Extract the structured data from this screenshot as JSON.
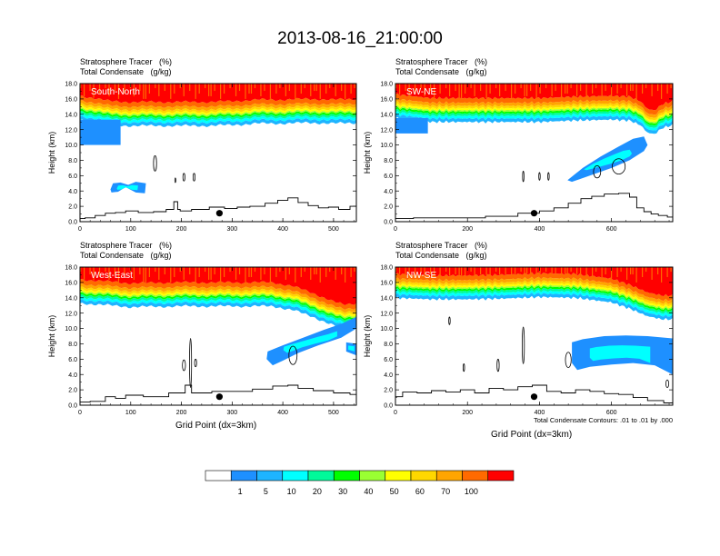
{
  "title": "2013-08-16_21:00:00",
  "colors": {
    "scale": [
      "#ffffff",
      "#1e90ff",
      "#1eb4ff",
      "#00ffff",
      "#00fa9a",
      "#00ff00",
      "#9aff32",
      "#ffff00",
      "#ffd700",
      "#ffa500",
      "#ff6a00",
      "#ff0000"
    ],
    "condensate_fill": "#1e90ff",
    "cloud_stroke": "#000000",
    "terrain_stroke": "#000000"
  },
  "colorbar": {
    "labels": [
      "1",
      "5",
      "10",
      "20",
      "30",
      "40",
      "50",
      "60",
      "70",
      "100"
    ]
  },
  "note": "Total Condensate Contours: .01 to .01 by .000",
  "xaxis_title": "Grid Point (dx=3km)",
  "chart_data": [
    {
      "type": "heatmap",
      "panel": "South-North",
      "field_label": "Stratosphere Tracer   (%)",
      "contour_label": "Total Condensate   (g/kg)",
      "ylabel": "Height (km)",
      "xlim": [
        0,
        545
      ],
      "ylim": [
        0,
        18
      ],
      "xticks": [
        "0",
        "100",
        "200",
        "300",
        "400",
        "500"
      ],
      "xtick_values": [
        0,
        100,
        200,
        300,
        400,
        500
      ],
      "yticks": [
        "0.0",
        "2.0",
        "4.0",
        "6.0",
        "8.0",
        "10.0",
        "12.0",
        "14.0",
        "16.0",
        "18.0"
      ],
      "tracer_profile": {
        "x": [
          0,
          30,
          60,
          100,
          150,
          200,
          250,
          300,
          350,
          400,
          450,
          500,
          545
        ],
        "base_km": [
          13.3,
          13.0,
          12.6,
          12.5,
          12.5,
          12.5,
          12.5,
          12.6,
          12.8,
          12.8,
          12.9,
          12.8,
          12.9
        ]
      },
      "low_tracer": [
        {
          "x0": 0,
          "x1": 80,
          "y0": 10.0,
          "y1": 13.3
        }
      ],
      "condensate_fill": [
        {
          "x": [
            60,
            65,
            80,
            95,
            110,
            130,
            128,
            110,
            90,
            75,
            62
          ],
          "y": [
            4.2,
            5.0,
            5.1,
            4.8,
            5.2,
            5.0,
            3.7,
            3.8,
            4.5,
            3.9,
            3.8
          ]
        }
      ],
      "cloud_contours": [
        {
          "cx": 148,
          "cy": 7.6,
          "rx": 3,
          "ry": 1.0
        },
        {
          "cx": 205,
          "cy": 5.8,
          "rx": 2,
          "ry": 0.5
        },
        {
          "cx": 225,
          "cy": 5.8,
          "rx": 2,
          "ry": 0.5
        },
        {
          "cx": 188,
          "cy": 5.4,
          "rx": 1,
          "ry": 0.3
        }
      ],
      "terrain": {
        "x": [
          0,
          20,
          40,
          60,
          80,
          100,
          130,
          160,
          180,
          190,
          195,
          200,
          240,
          270,
          300,
          320,
          350,
          380,
          400,
          420,
          440,
          460,
          480,
          500,
          520,
          545
        ],
        "y": [
          0.4,
          0.5,
          0.8,
          1.1,
          1.2,
          1.4,
          1.2,
          1.3,
          1.6,
          2.6,
          1.6,
          1.4,
          1.6,
          1.9,
          1.7,
          1.9,
          2.0,
          2.4,
          2.8,
          3.1,
          2.5,
          2.1,
          1.8,
          1.9,
          1.6,
          2.0
        ]
      },
      "marker": {
        "x": 275,
        "y": 1.1
      }
    },
    {
      "type": "heatmap",
      "panel": "SW-NE",
      "field_label": "Stratosphere Tracer   (%)",
      "contour_label": "Total Condensate   (g/kg)",
      "ylabel": "Height (km)",
      "xlim": [
        0,
        770
      ],
      "ylim": [
        0,
        18
      ],
      "xticks": [
        "0",
        "200",
        "400",
        "600"
      ],
      "xtick_values": [
        0,
        200,
        400,
        600
      ],
      "yticks": [
        "0.0",
        "2.0",
        "4.0",
        "6.0",
        "8.0",
        "10.0",
        "12.0",
        "14.0",
        "16.0",
        "18.0"
      ],
      "tracer_profile": {
        "x": [
          0,
          100,
          200,
          300,
          400,
          500,
          600,
          650,
          680,
          700,
          720,
          740,
          770
        ],
        "base_km": [
          13.5,
          13.0,
          13.0,
          13.0,
          13.0,
          13.2,
          13.3,
          13.2,
          12.6,
          11.6,
          11.4,
          12.2,
          12.6
        ]
      },
      "low_tracer": [
        {
          "x0": 0,
          "x1": 90,
          "y0": 11.5,
          "y1": 13.5
        }
      ],
      "condensate_fill": [
        {
          "x": [
            480,
            520,
            570,
            620,
            660,
            690,
            700,
            690,
            650,
            600,
            540,
            490,
            478
          ],
          "y": [
            5.5,
            7.0,
            8.5,
            9.8,
            10.8,
            11.1,
            10.0,
            9.2,
            8.0,
            7.0,
            6.0,
            5.2,
            5.4
          ]
        }
      ],
      "cloud_contours": [
        {
          "cx": 355,
          "cy": 5.9,
          "rx": 2,
          "ry": 0.7
        },
        {
          "cx": 400,
          "cy": 5.9,
          "rx": 2,
          "ry": 0.5
        },
        {
          "cx": 425,
          "cy": 5.9,
          "rx": 2,
          "ry": 0.5
        },
        {
          "cx": 560,
          "cy": 6.5,
          "rx": 10,
          "ry": 0.8
        },
        {
          "cx": 620,
          "cy": 7.2,
          "rx": 18,
          "ry": 1.0
        }
      ],
      "terrain": {
        "x": [
          0,
          100,
          200,
          300,
          380,
          420,
          460,
          500,
          530,
          560,
          600,
          640,
          660,
          680,
          700,
          720,
          740,
          770
        ],
        "y": [
          0.4,
          0.5,
          0.5,
          0.7,
          1.1,
          1.4,
          1.8,
          2.4,
          3.0,
          3.3,
          3.6,
          3.7,
          3.2,
          1.8,
          1.3,
          1.0,
          0.8,
          0.6
        ]
      },
      "marker": {
        "x": 385,
        "y": 1.1
      }
    },
    {
      "type": "heatmap",
      "panel": "West-East",
      "field_label": "Stratosphere Tracer   (%)",
      "contour_label": "Total Condensate   (g/kg)",
      "ylabel": "Height (km)",
      "xlim": [
        0,
        545
      ],
      "ylim": [
        0,
        18
      ],
      "xticks": [
        "0",
        "100",
        "200",
        "300",
        "400",
        "500"
      ],
      "xtick_values": [
        0,
        100,
        200,
        300,
        400,
        500
      ],
      "yticks": [
        "0.0",
        "2.0",
        "4.0",
        "6.0",
        "8.0",
        "10.0",
        "12.0",
        "14.0",
        "16.0",
        "18.0"
      ],
      "tracer_profile": {
        "x": [
          0,
          100,
          200,
          300,
          380,
          420,
          460,
          500,
          520,
          545
        ],
        "base_km": [
          13.3,
          12.8,
          12.9,
          12.9,
          12.9,
          12.4,
          11.5,
          10.4,
          10.0,
          10.2
        ]
      },
      "low_tracer": [],
      "condensate_fill": [
        {
          "x": [
            370,
            400,
            440,
            480,
            515,
            545,
            545,
            515,
            470,
            430,
            400,
            380,
            368
          ],
          "y": [
            7.0,
            7.8,
            8.8,
            9.8,
            10.6,
            11.5,
            10.0,
            8.8,
            7.8,
            6.8,
            5.8,
            5.2,
            6.0
          ]
        },
        {
          "x": [
            525,
            545,
            545,
            525
          ],
          "y": [
            8.2,
            8.0,
            6.5,
            7.0
          ]
        }
      ],
      "cloud_contours": [
        {
          "cx": 218,
          "cy": 5.5,
          "rx": 2,
          "ry": 3.2
        },
        {
          "cx": 205,
          "cy": 5.2,
          "rx": 3,
          "ry": 0.7
        },
        {
          "cx": 228,
          "cy": 5.5,
          "rx": 2,
          "ry": 0.5
        },
        {
          "cx": 420,
          "cy": 6.5,
          "rx": 8,
          "ry": 1.2
        }
      ],
      "terrain": {
        "x": [
          0,
          40,
          60,
          80,
          100,
          150,
          200,
          215,
          225,
          240,
          280,
          320,
          360,
          400,
          420,
          440,
          480,
          520,
          545
        ],
        "y": [
          0.4,
          0.5,
          1.1,
          0.9,
          1.3,
          1.1,
          1.6,
          2.6,
          1.6,
          1.6,
          1.8,
          1.8,
          2.1,
          2.5,
          2.6,
          2.2,
          1.9,
          1.6,
          1.4
        ]
      },
      "marker": {
        "x": 275,
        "y": 1.1
      }
    },
    {
      "type": "heatmap",
      "panel": "NW-SE",
      "field_label": "Stratosphere Tracer   (%)",
      "contour_label": "Total Condensate   (g/kg)",
      "ylabel": "Height (km)",
      "xlim": [
        0,
        770
      ],
      "ylim": [
        0,
        18
      ],
      "xticks": [
        "0",
        "200",
        "400",
        "600"
      ],
      "xtick_values": [
        0,
        200,
        400,
        600
      ],
      "yticks": [
        "0.0",
        "2.0",
        "4.0",
        "6.0",
        "8.0",
        "10.0",
        "12.0",
        "14.0",
        "16.0",
        "18.0"
      ],
      "tracer_profile": {
        "x": [
          0,
          100,
          200,
          300,
          400,
          500,
          600,
          650,
          700,
          740,
          770
        ],
        "base_km": [
          14.0,
          13.8,
          13.8,
          13.9,
          14.1,
          14.0,
          13.4,
          12.6,
          11.6,
          11.2,
          11.2
        ]
      },
      "low_tracer": [],
      "condensate_fill": [
        {
          "x": [
            490,
            520,
            580,
            640,
            700,
            770,
            770,
            720,
            660,
            600,
            540,
            505,
            490
          ],
          "y": [
            8.2,
            8.6,
            9.0,
            9.1,
            9.0,
            8.7,
            4.0,
            5.2,
            5.5,
            5.3,
            5.0,
            4.6,
            5.5
          ]
        }
      ],
      "cloud_contours": [
        {
          "cx": 150,
          "cy": 11.0,
          "rx": 2,
          "ry": 0.5
        },
        {
          "cx": 190,
          "cy": 4.9,
          "rx": 2,
          "ry": 0.5
        },
        {
          "cx": 285,
          "cy": 5.2,
          "rx": 3,
          "ry": 0.8
        },
        {
          "cx": 355,
          "cy": 7.8,
          "rx": 3,
          "ry": 2.4
        },
        {
          "cx": 480,
          "cy": 5.9,
          "rx": 8,
          "ry": 1.0
        },
        {
          "cx": 755,
          "cy": 2.8,
          "rx": 4,
          "ry": 0.5
        }
      ],
      "terrain": {
        "x": [
          0,
          40,
          80,
          120,
          160,
          200,
          240,
          280,
          320,
          360,
          400,
          440,
          480,
          520,
          560,
          600,
          640,
          680,
          720,
          770
        ],
        "y": [
          1.1,
          1.7,
          1.6,
          1.9,
          1.7,
          2.0,
          1.6,
          2.2,
          2.0,
          2.4,
          2.6,
          1.8,
          1.6,
          2.0,
          1.8,
          1.5,
          1.4,
          1.0,
          0.6,
          0.3
        ]
      },
      "marker": {
        "x": 385,
        "y": 1.1
      }
    }
  ]
}
